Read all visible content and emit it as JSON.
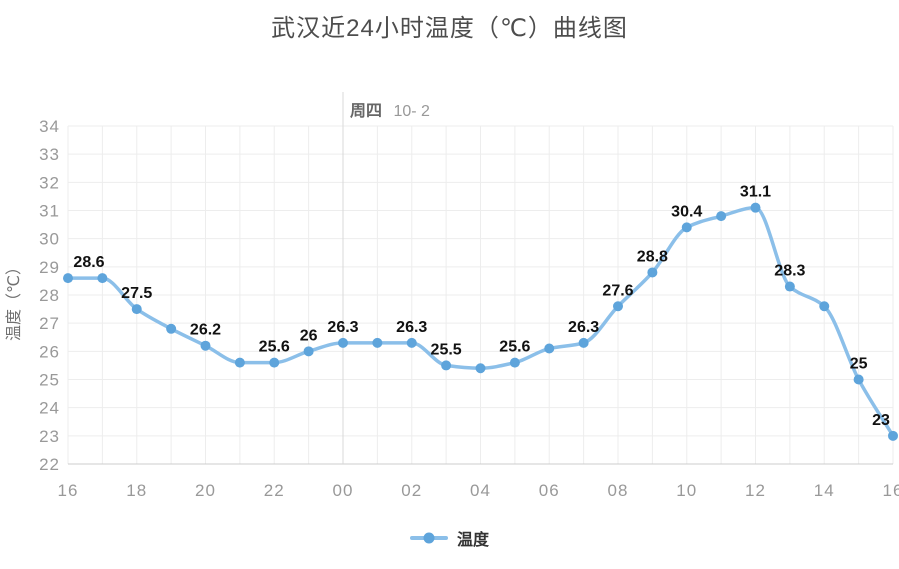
{
  "title": "武汉近24小时温度（℃）曲线图",
  "day_annotation": {
    "weekday": "周四",
    "date": "10- 2"
  },
  "legend": {
    "items": [
      {
        "label": "温度"
      }
    ]
  },
  "colors": {
    "line": "#8bbfe9",
    "marker": "#5ea4db",
    "grid": "#ededed",
    "separator": "#d9d9d9",
    "axis_line": "#cccccc",
    "tick_text": "#999999",
    "data_label": "#111111",
    "title_text": "#4d4d4d",
    "legend_text": "#333333"
  },
  "chart_data": {
    "type": "line",
    "smooth": true,
    "title": "武汉近24小时温度（℃）曲线图",
    "xlabel": "",
    "ylabel": "温度（℃）",
    "series": [
      {
        "name": "温度",
        "x": [
          "16",
          "17",
          "18",
          "19",
          "20",
          "21",
          "22",
          "23",
          "00",
          "01",
          "02",
          "03",
          "04",
          "05",
          "06",
          "07",
          "08",
          "09",
          "10",
          "11",
          "12",
          "13",
          "14",
          "15",
          "16"
        ],
        "values": [
          28.6,
          28.6,
          27.5,
          26.8,
          26.2,
          25.6,
          25.6,
          26,
          26.3,
          26.3,
          26.3,
          25.5,
          25.4,
          25.6,
          26.1,
          26.3,
          27.6,
          28.8,
          30.4,
          30.8,
          31.1,
          28.3,
          27.6,
          25,
          23
        ],
        "point_labels": [
          "28.6",
          null,
          "27.5",
          null,
          "26.2",
          null,
          "25.6",
          "26",
          "26.3",
          null,
          "26.3",
          "25.5",
          null,
          "25.6",
          null,
          "26.3",
          "27.6",
          "28.8",
          "30.4",
          null,
          "31.1",
          "28.3",
          null,
          "25",
          "23"
        ]
      }
    ],
    "x_tick_labels": [
      "16",
      "18",
      "20",
      "22",
      "00",
      "02",
      "04",
      "06",
      "08",
      "10",
      "12",
      "14",
      "16"
    ],
    "y_ticks": [
      22,
      23,
      24,
      25,
      26,
      27,
      28,
      29,
      30,
      31,
      32,
      33,
      34
    ],
    "ylim": [
      22,
      34
    ],
    "grid": true,
    "legend_position": "bottom",
    "day_separator_x_index": 8
  }
}
